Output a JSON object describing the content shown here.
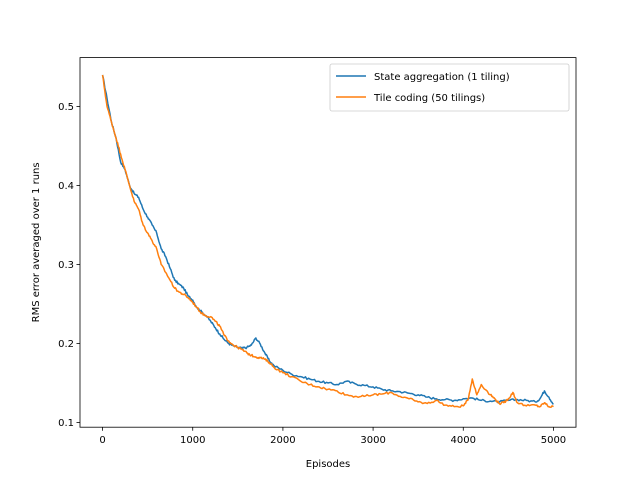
{
  "chart_data": {
    "type": "line",
    "title": "",
    "xlabel": "Episodes",
    "ylabel": "RMS error averaged over 1 runs",
    "xlim": [
      -250,
      5250
    ],
    "ylim": [
      0.094,
      0.562
    ],
    "xticks": [
      0,
      1000,
      2000,
      3000,
      4000,
      5000
    ],
    "yticks": [
      0.1,
      0.2,
      0.3,
      0.4,
      0.5
    ],
    "xtick_labels": [
      "0",
      "1000",
      "2000",
      "3000",
      "4000",
      "5000"
    ],
    "ytick_labels": [
      "0.1",
      "0.2",
      "0.3",
      "0.4",
      "0.5"
    ],
    "grid": false,
    "legend_position": "top-right",
    "series": [
      {
        "name": "State aggregation (1 tiling)",
        "color": "#1f77b4",
        "x": [
          0,
          50,
          100,
          150,
          200,
          250,
          300,
          350,
          400,
          450,
          500,
          550,
          600,
          650,
          700,
          750,
          800,
          850,
          900,
          950,
          1000,
          1050,
          1100,
          1150,
          1200,
          1250,
          1300,
          1350,
          1400,
          1450,
          1500,
          1550,
          1600,
          1650,
          1700,
          1750,
          1800,
          1850,
          1900,
          2000,
          2100,
          2200,
          2300,
          2400,
          2500,
          2600,
          2700,
          2800,
          2900,
          3000,
          3100,
          3200,
          3300,
          3400,
          3500,
          3600,
          3700,
          3800,
          3900,
          4000,
          4100,
          4200,
          4300,
          4400,
          4500,
          4600,
          4700,
          4800,
          4850,
          4900,
          4950,
          5000
        ],
        "y": [
          0.54,
          0.51,
          0.48,
          0.46,
          0.43,
          0.42,
          0.4,
          0.39,
          0.385,
          0.37,
          0.36,
          0.35,
          0.34,
          0.32,
          0.31,
          0.295,
          0.28,
          0.275,
          0.27,
          0.26,
          0.255,
          0.245,
          0.24,
          0.235,
          0.228,
          0.22,
          0.212,
          0.205,
          0.2,
          0.197,
          0.195,
          0.194,
          0.195,
          0.198,
          0.207,
          0.199,
          0.188,
          0.178,
          0.172,
          0.166,
          0.161,
          0.158,
          0.155,
          0.152,
          0.15,
          0.148,
          0.152,
          0.149,
          0.147,
          0.145,
          0.142,
          0.14,
          0.139,
          0.137,
          0.135,
          0.132,
          0.13,
          0.129,
          0.128,
          0.13,
          0.131,
          0.128,
          0.127,
          0.126,
          0.128,
          0.129,
          0.128,
          0.126,
          0.13,
          0.14,
          0.132,
          0.123
        ]
      },
      {
        "name": "Tile coding (50 tilings)",
        "color": "#ff7f0e",
        "x": [
          0,
          50,
          100,
          150,
          200,
          250,
          300,
          350,
          400,
          450,
          500,
          550,
          600,
          650,
          700,
          750,
          800,
          850,
          900,
          950,
          1000,
          1050,
          1100,
          1150,
          1200,
          1250,
          1300,
          1350,
          1400,
          1450,
          1500,
          1550,
          1600,
          1650,
          1700,
          1750,
          1800,
          1850,
          1900,
          2000,
          2100,
          2200,
          2300,
          2400,
          2500,
          2600,
          2700,
          2800,
          2900,
          3000,
          3100,
          3200,
          3300,
          3400,
          3500,
          3600,
          3700,
          3800,
          3900,
          4000,
          4050,
          4100,
          4150,
          4200,
          4300,
          4350,
          4400,
          4450,
          4500,
          4550,
          4600,
          4700,
          4800,
          4850,
          4900,
          4950,
          5000
        ],
        "y": [
          0.54,
          0.5,
          0.48,
          0.46,
          0.44,
          0.42,
          0.4,
          0.38,
          0.37,
          0.35,
          0.34,
          0.33,
          0.32,
          0.3,
          0.29,
          0.28,
          0.27,
          0.265,
          0.262,
          0.258,
          0.252,
          0.245,
          0.238,
          0.235,
          0.234,
          0.228,
          0.222,
          0.21,
          0.203,
          0.198,
          0.195,
          0.192,
          0.188,
          0.185,
          0.183,
          0.182,
          0.18,
          0.176,
          0.17,
          0.163,
          0.158,
          0.152,
          0.148,
          0.145,
          0.142,
          0.14,
          0.135,
          0.133,
          0.133,
          0.135,
          0.136,
          0.138,
          0.133,
          0.13,
          0.126,
          0.124,
          0.128,
          0.122,
          0.12,
          0.121,
          0.128,
          0.155,
          0.135,
          0.148,
          0.135,
          0.13,
          0.124,
          0.125,
          0.13,
          0.138,
          0.125,
          0.121,
          0.122,
          0.12,
          0.125,
          0.12,
          0.12
        ]
      }
    ]
  }
}
